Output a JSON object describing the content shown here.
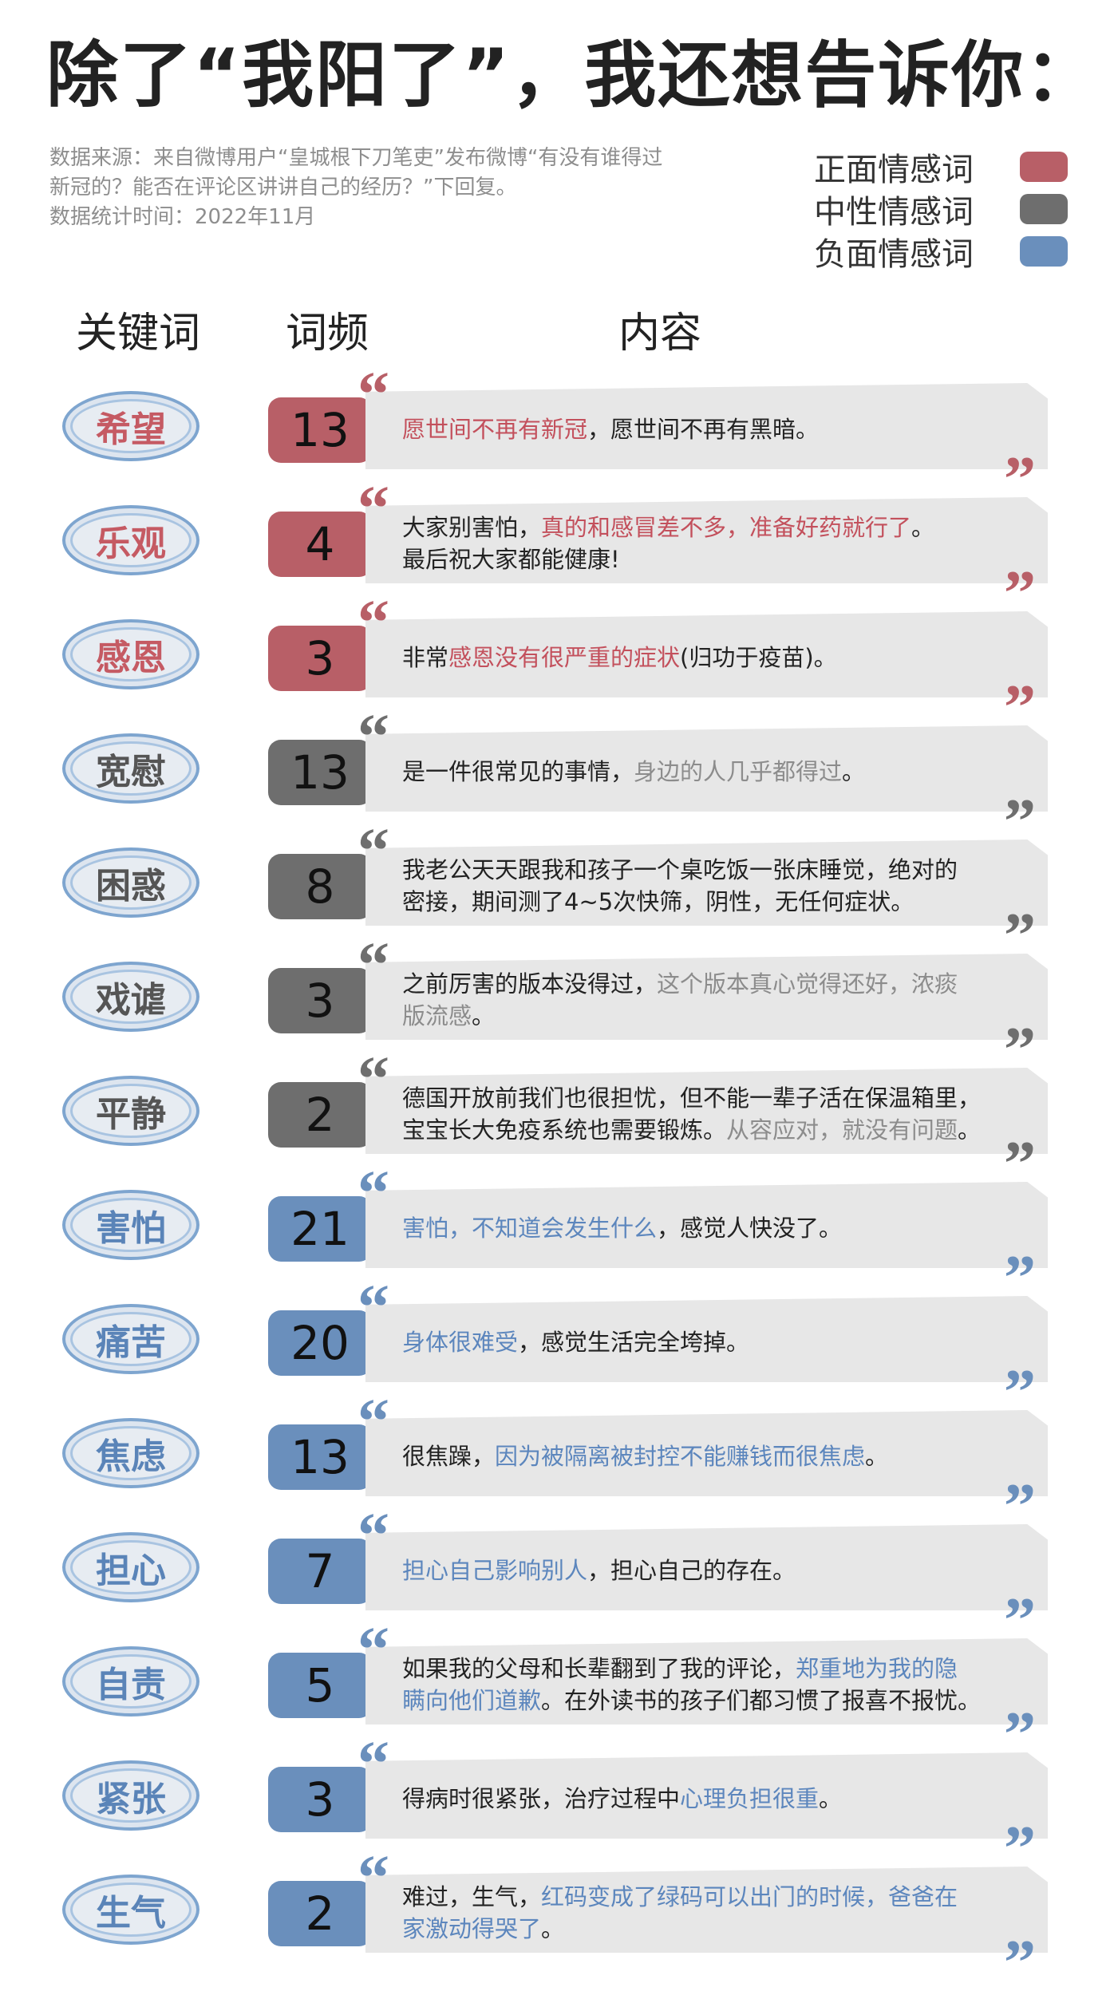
{
  "title": "除了“我阳了”，我还想告诉你：",
  "source": {
    "line1": "数据来源：来自微博用户“皇城根下刀笔吏”发布微博“有没有谁得过",
    "line2": "新冠的？能否在评论区讲讲自己的经历？”下回复。",
    "line3": "数据统计时间：2022年11月"
  },
  "legend": [
    {
      "label": "正面情感词",
      "color": "#b85f67"
    },
    {
      "label": "中性情感词",
      "color": "#6e6e6e"
    },
    {
      "label": "负面情感词",
      "color": "#6a8fbc"
    }
  ],
  "headers": {
    "keyword": "关键词",
    "freq": "词频",
    "content": "内容"
  },
  "rows": [
    {
      "keyword": "希望",
      "count": "13",
      "sentiment": "pos",
      "lines": [
        [
          {
            "t": "愿世间不再有新冠",
            "h": true
          },
          {
            "t": "，愿世间不再有黑暗。",
            "h": false
          }
        ]
      ]
    },
    {
      "keyword": "乐观",
      "count": "4",
      "sentiment": "pos",
      "lines": [
        [
          {
            "t": "大家别害怕，",
            "h": false
          },
          {
            "t": "真的和感冒差不多，准备好药就行了",
            "h": true
          },
          {
            "t": "。",
            "h": false
          }
        ],
        [
          {
            "t": "最后祝大家都能健康!",
            "h": false
          }
        ]
      ]
    },
    {
      "keyword": "感恩",
      "count": "3",
      "sentiment": "pos",
      "lines": [
        [
          {
            "t": "非常",
            "h": false
          },
          {
            "t": "感恩没有很严重的症状",
            "h": true
          },
          {
            "t": "(归功于疫苗)。",
            "h": false
          }
        ]
      ]
    },
    {
      "keyword": "宽慰",
      "count": "13",
      "sentiment": "neu",
      "lines": [
        [
          {
            "t": "是一件很常见的事情，",
            "h": false
          },
          {
            "t": "身边的人几乎都得过",
            "h": true
          },
          {
            "t": "。",
            "h": false
          }
        ]
      ]
    },
    {
      "keyword": "困惑",
      "count": "8",
      "sentiment": "neu",
      "lines": [
        [
          {
            "t": "我老公天天跟我和孩子一个桌吃饭一张床睡觉，绝对的",
            "h": false
          }
        ],
        [
          {
            "t": "密接，期间测了4~5次快筛，阴性，无任何症状。",
            "h": false
          }
        ]
      ]
    },
    {
      "keyword": "戏谑",
      "count": "3",
      "sentiment": "neu",
      "lines": [
        [
          {
            "t": "之前厉害的版本没得过，",
            "h": false
          },
          {
            "t": "这个版本真心觉得还好，浓痰",
            "h": true
          }
        ],
        [
          {
            "t": "版流感",
            "h": true
          },
          {
            "t": "。",
            "h": false
          }
        ]
      ]
    },
    {
      "keyword": "平静",
      "count": "2",
      "sentiment": "neu",
      "lines": [
        [
          {
            "t": "德国开放前我们也很担忧，但不能一辈子活在保温箱里，",
            "h": false
          }
        ],
        [
          {
            "t": "宝宝长大免疫系统也需要锻炼。",
            "h": false
          },
          {
            "t": "从容应对，就没有问题",
            "h": true
          },
          {
            "t": "。",
            "h": false
          }
        ]
      ]
    },
    {
      "keyword": "害怕",
      "count": "21",
      "sentiment": "negc",
      "lines": [
        [
          {
            "t": "害怕，不知道会发生什么",
            "h": true
          },
          {
            "t": "，感觉人快没了。",
            "h": false
          }
        ]
      ]
    },
    {
      "keyword": "痛苦",
      "count": "20",
      "sentiment": "negc",
      "lines": [
        [
          {
            "t": "身体很难受",
            "h": true
          },
          {
            "t": "，感觉生活完全垮掉。",
            "h": false
          }
        ]
      ]
    },
    {
      "keyword": "焦虑",
      "count": "13",
      "sentiment": "negc",
      "lines": [
        [
          {
            "t": "很焦躁，",
            "h": false
          },
          {
            "t": "因为被隔离被封控不能赚钱而很焦虑",
            "h": true
          },
          {
            "t": "。",
            "h": false
          }
        ]
      ]
    },
    {
      "keyword": "担心",
      "count": "7",
      "sentiment": "negc",
      "lines": [
        [
          {
            "t": "担心自己影响别人",
            "h": true
          },
          {
            "t": "，担心自己的存在。",
            "h": false
          }
        ]
      ]
    },
    {
      "keyword": "自责",
      "count": "5",
      "sentiment": "negc",
      "lines": [
        [
          {
            "t": "如果我的父母和长辈翻到了我的评论，",
            "h": false
          },
          {
            "t": "郑重地为我的隐",
            "h": true
          }
        ],
        [
          {
            "t": "瞒向他们道歉",
            "h": true
          },
          {
            "t": "。在外读书的孩子们都习惯了报喜不报忧。",
            "h": false
          }
        ]
      ]
    },
    {
      "keyword": "紧张",
      "count": "3",
      "sentiment": "negc",
      "lines": [
        [
          {
            "t": "得病时很紧张，治疗过程中",
            "h": false
          },
          {
            "t": "心理负担很重",
            "h": true
          },
          {
            "t": "。",
            "h": false
          }
        ]
      ]
    },
    {
      "keyword": "生气",
      "count": "2",
      "sentiment": "negc",
      "lines": [
        [
          {
            "t": "难过，生气，",
            "h": false
          },
          {
            "t": "红码变成了绿码可以出门的时候，爸爸在",
            "h": true
          }
        ],
        [
          {
            "t": "家激动得哭了",
            "h": true
          },
          {
            "t": "。",
            "h": false
          }
        ]
      ]
    }
  ]
}
